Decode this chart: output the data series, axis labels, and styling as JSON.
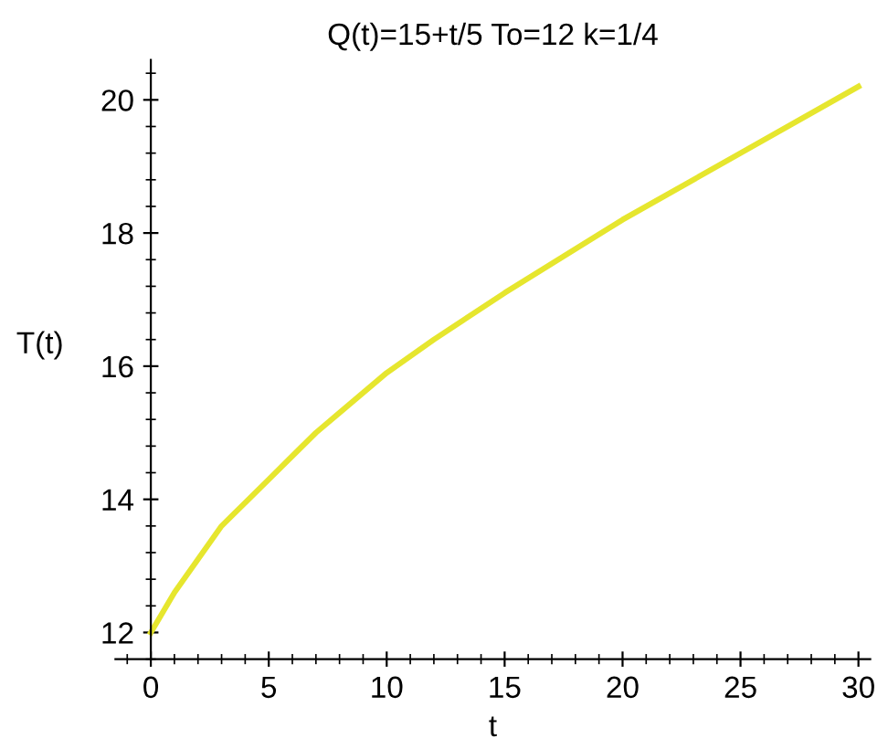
{
  "chart_data": {
    "type": "line",
    "title": "Q(t)=15+t/5 To=12 k=1/4",
    "xlabel": "t",
    "ylabel": "T(t)",
    "x": [
      0,
      1,
      2,
      3,
      4,
      5,
      6,
      7,
      8,
      10,
      12,
      15,
      20,
      25,
      30
    ],
    "series": [
      {
        "color": "#e6e62e",
        "values": [
          12,
          12.6,
          13.1,
          13.6,
          13.95,
          14.3,
          14.65,
          15.0,
          15.3,
          15.9,
          16.4,
          17.1,
          18.2,
          19.2,
          20.2
        ]
      }
    ],
    "xlim": [
      -1.5,
      30.5
    ],
    "ylim": [
      11.6,
      20.6
    ],
    "xticks": [
      0,
      5,
      10,
      15,
      20,
      25,
      30
    ],
    "yticks": [
      12,
      14,
      16,
      18,
      20
    ],
    "grid": false,
    "legend": false,
    "marker": "none",
    "line_style": "solid"
  }
}
